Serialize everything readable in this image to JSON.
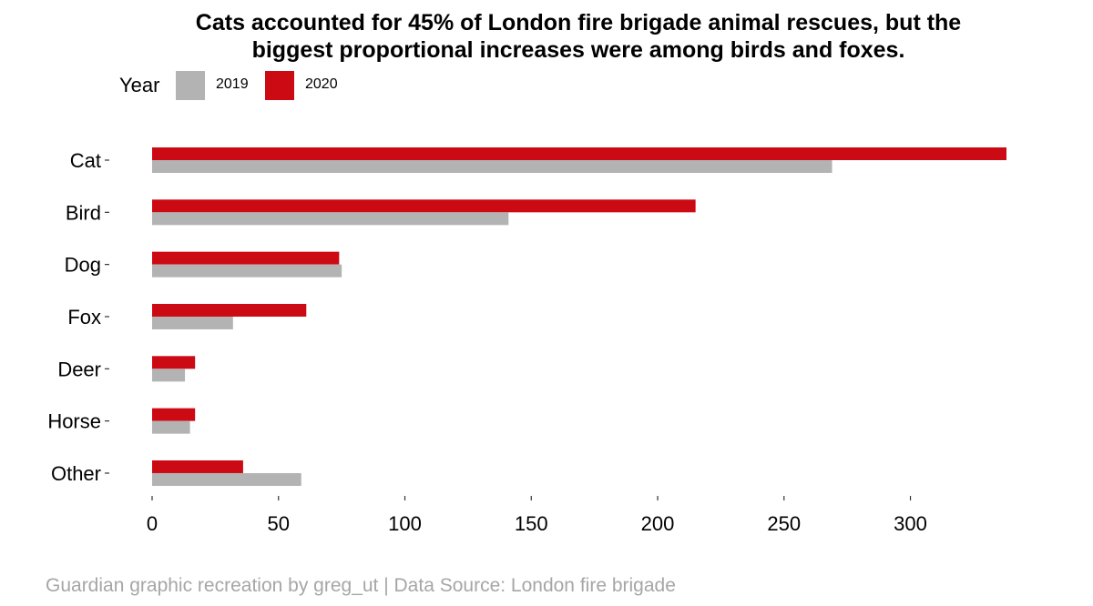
{
  "chart_data": {
    "type": "bar",
    "orientation": "horizontal",
    "title_lines": [
      "Cats accounted for 45% of London fire brigade animal rescues, but the",
      "biggest proportional increases were among birds and foxes."
    ],
    "legend": {
      "title": "Year",
      "position": "top-left"
    },
    "categories": [
      "Cat",
      "Bird",
      "Dog",
      "Fox",
      "Deer",
      "Horse",
      "Other"
    ],
    "series": [
      {
        "name": "2019",
        "color": "#b3b3b3",
        "values": [
          269,
          141,
          75,
          32,
          13,
          15,
          59
        ]
      },
      {
        "name": "2020",
        "color": "#cc0a14",
        "values": [
          338,
          215,
          74,
          61,
          17,
          17,
          36
        ]
      }
    ],
    "xlim": [
      0,
      338
    ],
    "xticks": [
      0,
      50,
      100,
      150,
      200,
      250,
      300
    ],
    "grid": false,
    "caption": "Guardian graphic recreation by greg_ut | Data Source: London fire brigade"
  }
}
